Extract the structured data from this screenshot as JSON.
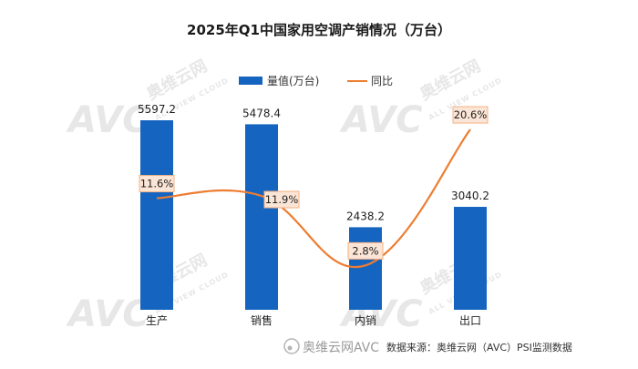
{
  "watermark": {
    "logo_text": "AVC",
    "name": "奥维云网",
    "sub": "ALL VIEW CLOUD"
  },
  "footer": {
    "brand": "奥维云网AVC",
    "source": "数据来源：奥维云网（AVC）PSI监测数据"
  },
  "colors": {
    "bar": "#1565c0",
    "line": "#ed7d31",
    "label_box_fill": "#fbe5d6",
    "label_box_stroke": "#f4b183"
  },
  "chart_data": {
    "type": "bar",
    "title": "2025年Q1中国家用空调产销情况（万台）",
    "categories": [
      "生产",
      "销售",
      "内销",
      "出口"
    ],
    "series": [
      {
        "name": "量值(万台)",
        "type": "bar",
        "values": [
          5597.2,
          5478.4,
          2438.2,
          3040.2
        ]
      },
      {
        "name": "同比",
        "type": "line",
        "values": [
          11.6,
          11.9,
          2.8,
          20.6
        ],
        "labels": [
          "11.6%",
          "11.9%",
          "2.8%",
          "20.6%"
        ]
      }
    ],
    "bar_value_labels": [
      "5597.2",
      "5478.4",
      "2438.2",
      "3040.2"
    ],
    "ylim": [
      0,
      6200
    ],
    "y2lim": [
      -3,
      28
    ],
    "legend": "top"
  }
}
